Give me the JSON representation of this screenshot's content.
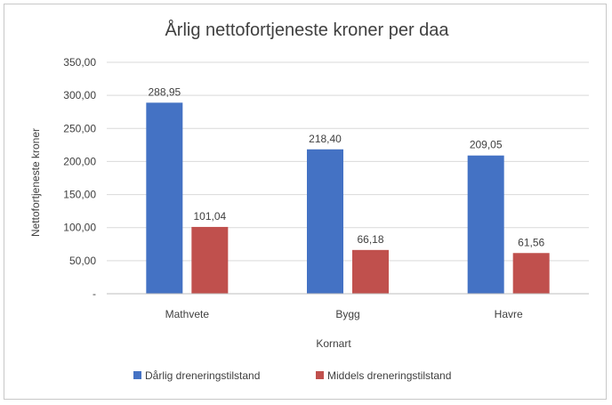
{
  "chart_data": {
    "type": "bar",
    "title": "Årlig nettofortjeneste kroner per daa",
    "xlabel": "Kornart",
    "ylabel": "Nettofortjeneste  kroner",
    "categories": [
      "Mathvete",
      "Bygg",
      "Havre"
    ],
    "ylim": [
      0,
      350
    ],
    "yticks": [
      0,
      50,
      100,
      150,
      200,
      250,
      300,
      350
    ],
    "ytick_labels": [
      "-",
      "50,00",
      "100,00",
      "150,00",
      "200,00",
      "250,00",
      "300,00",
      "350,00"
    ],
    "series": [
      {
        "name": "Dårlig dreneringstilstand",
        "values": [
          288.95,
          218.4,
          209.05
        ],
        "labels": [
          "288,95",
          "218,40",
          "209,05"
        ],
        "color": "#4472c4"
      },
      {
        "name": "Middels dreneringstilstand",
        "values": [
          101.04,
          66.18,
          61.56
        ],
        "labels": [
          "101,04",
          "66,18",
          "61,56"
        ],
        "color": "#c0504d"
      }
    ],
    "grid": true,
    "legend_position": "bottom"
  }
}
